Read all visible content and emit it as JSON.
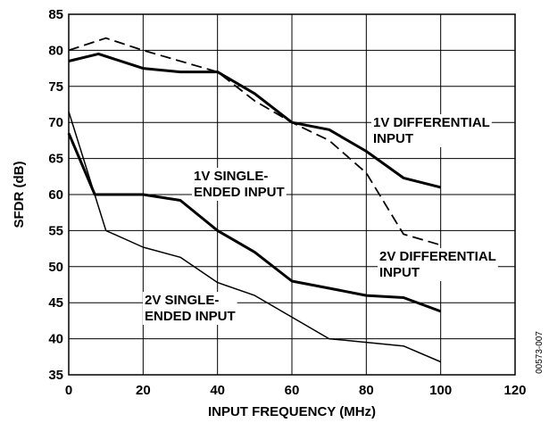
{
  "chart_data": {
    "type": "line",
    "xlabel": "INPUT FREQUENCY (MHz)",
    "ylabel": "SFDR (dB)",
    "xlim": [
      0,
      120
    ],
    "ylim": [
      35,
      85
    ],
    "xticks": [
      0,
      20,
      40,
      60,
      80,
      100,
      120
    ],
    "yticks": [
      35,
      40,
      45,
      50,
      55,
      60,
      65,
      70,
      75,
      80,
      85
    ],
    "grid": true,
    "figure_code": "00573-007",
    "series": [
      {
        "name": "1V DIFFERENTIAL INPUT",
        "style": "solid-thick",
        "x": [
          0,
          8,
          20,
          30,
          40,
          50,
          60,
          70,
          80,
          90,
          100
        ],
        "y": [
          78.5,
          79.5,
          77.5,
          77.0,
          77.0,
          74.0,
          70.0,
          69.0,
          66.0,
          62.3,
          61.0
        ]
      },
      {
        "name": "2V DIFFERENTIAL INPUT",
        "style": "dashed",
        "x": [
          0,
          10,
          20,
          30,
          40,
          50,
          60,
          70,
          80,
          90,
          100
        ],
        "y": [
          80.0,
          81.7,
          80.0,
          78.5,
          77.0,
          73.0,
          70.0,
          67.5,
          63.0,
          54.5,
          53.0
        ]
      },
      {
        "name": "1V SINGLE-ENDED INPUT",
        "style": "solid-thick",
        "x": [
          0,
          7,
          20,
          30,
          40,
          50,
          60,
          70,
          80,
          90,
          100
        ],
        "y": [
          68.5,
          60.0,
          60.0,
          59.2,
          55.0,
          52.0,
          48.0,
          47.0,
          46.0,
          45.7,
          43.8
        ]
      },
      {
        "name": "2V SINGLE-ENDED INPUT",
        "style": "solid-thin",
        "x": [
          0,
          10,
          20,
          30,
          40,
          50,
          60,
          70,
          80,
          90,
          100
        ],
        "y": [
          71.5,
          55.0,
          52.7,
          51.3,
          47.8,
          46.0,
          43.0,
          40.0,
          39.5,
          39.0,
          36.8
        ]
      }
    ],
    "annotations": [
      {
        "lines": [
          "1V DIFFERENTIAL",
          "INPUT"
        ],
        "series": "1V DIFFERENTIAL INPUT"
      },
      {
        "lines": [
          "1V SINGLE-",
          "ENDED INPUT"
        ],
        "series": "1V SINGLE-ENDED INPUT"
      },
      {
        "lines": [
          "2V DIFFERENTIAL",
          "INPUT"
        ],
        "series": "2V DIFFERENTIAL INPUT"
      },
      {
        "lines": [
          "2V SINGLE-",
          "ENDED INPUT"
        ],
        "series": "2V SINGLE-ENDED INPUT"
      }
    ]
  }
}
